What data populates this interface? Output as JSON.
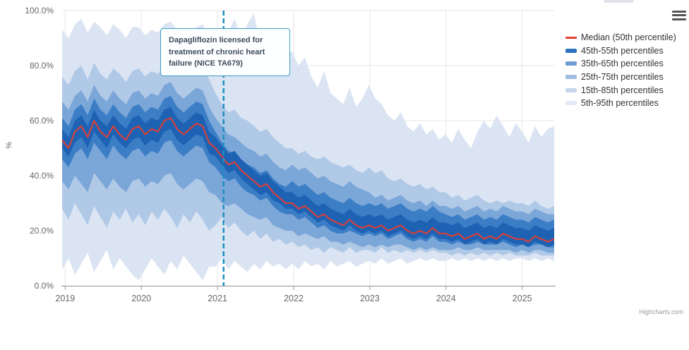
{
  "chart": {
    "y_axis_title": "%",
    "credits": "Highcharts.com",
    "annotation_text": "Dapagliflozin licensed for treatment of chronic heart failure (NICE TA679)",
    "menu_icon": "hamburger-icon",
    "colors": {
      "event_line": "#1d8fc0",
      "annotation_border": "#3aa0c7",
      "grid": "#e6e6e6",
      "axis_line": "#999999",
      "axis_label": "#666666",
      "legend_text": "#333333",
      "median": "#e23d32"
    }
  },
  "legend": {
    "items": [
      {
        "label": "Median (50th percentile)",
        "type": "line",
        "swatch_color": "#e23d32"
      },
      {
        "label": "45th-55th percentiles",
        "type": "band",
        "swatch_color": "#2e73bd"
      },
      {
        "label": "35th-65th percentiles",
        "type": "band",
        "swatch_color": "#6f9cd2"
      },
      {
        "label": "25th-75th percentiles",
        "type": "band",
        "swatch_color": "#9ebddf"
      },
      {
        "label": "15th-85th percentiles",
        "type": "band",
        "swatch_color": "#c6d6ec"
      },
      {
        "label": "5th-95th percentiles",
        "type": "band",
        "swatch_color": "#e3eaf5"
      }
    ]
  },
  "chart_data": {
    "type": "area",
    "subtype": "fan-chart-percentiles",
    "title": "",
    "xlabel": "",
    "ylabel": "%",
    "grid": true,
    "legend_position": "right",
    "xlim": [
      2018.96,
      2025.42
    ],
    "ylim": [
      0,
      100
    ],
    "n_points": 78,
    "x_unit": "monthly from Jan 2019 to Jun 2025",
    "x_ticks": [
      2019,
      2020,
      2021,
      2022,
      2023,
      2024,
      2025
    ],
    "x_tick_labels": [
      "2019",
      "2020",
      "2021",
      "2022",
      "2023",
      "2024",
      "2025"
    ],
    "y_ticks": [
      0,
      20,
      40,
      60,
      80,
      100
    ],
    "y_tick_labels": [
      "0.0%",
      "20.0%",
      "40.0%",
      "60.0%",
      "80.0%",
      "100.0%"
    ],
    "annotation_line_x": 2021.08,
    "series": [
      {
        "name": "Median (50th percentile)",
        "type": "line",
        "color": "#e23d32",
        "values": [
          53,
          50,
          56,
          58,
          54,
          60,
          56,
          54,
          58,
          55,
          53,
          57,
          58,
          55,
          57,
          56,
          60,
          61,
          57,
          55,
          57,
          59,
          58,
          52,
          50,
          47,
          44,
          45,
          42,
          40,
          38,
          36,
          37,
          34,
          32,
          30,
          30,
          28,
          29,
          27,
          25,
          26,
          24,
          23,
          22,
          24,
          22,
          21,
          22,
          21,
          22,
          20,
          21,
          22,
          20,
          19,
          20,
          19,
          21,
          19,
          19,
          18,
          19,
          17,
          18,
          19,
          17,
          18,
          17,
          19,
          18,
          17,
          17,
          16,
          18,
          17,
          16,
          17
        ]
      },
      {
        "name": "45th-55th percentiles",
        "type": "band",
        "color": "#1e62b4",
        "lower": [
          50,
          47,
          52,
          54,
          50,
          56,
          53,
          50,
          55,
          52,
          50,
          53,
          54,
          51,
          53,
          52,
          56,
          57,
          53,
          51,
          53,
          55,
          54,
          48,
          47,
          44,
          41,
          42,
          39,
          37,
          35,
          33,
          34,
          31,
          30,
          28,
          28,
          26,
          27,
          25,
          23,
          24,
          22,
          21,
          20,
          22,
          20,
          19,
          20,
          19,
          20,
          18,
          19,
          20,
          18,
          17,
          18,
          17,
          19,
          17,
          17,
          16,
          17,
          15,
          16,
          17,
          15,
          16,
          15,
          17,
          16,
          15,
          15,
          14,
          16,
          15,
          14,
          15
        ],
        "upper": [
          57,
          54,
          60,
          62,
          58,
          64,
          60,
          58,
          62,
          59,
          57,
          61,
          62,
          59,
          61,
          60,
          64,
          65,
          61,
          59,
          61,
          63,
          62,
          56,
          54,
          51,
          48,
          49,
          46,
          44,
          42,
          40,
          41,
          38,
          36,
          34,
          34,
          32,
          33,
          31,
          29,
          30,
          28,
          27,
          26,
          28,
          26,
          25,
          26,
          25,
          26,
          24,
          25,
          26,
          24,
          23,
          24,
          23,
          25,
          23,
          23,
          22,
          23,
          21,
          22,
          23,
          21,
          22,
          21,
          23,
          22,
          21,
          21,
          20,
          22,
          21,
          20,
          21
        ]
      },
      {
        "name": "35th-65th percentiles",
        "type": "band",
        "color": "#3c7ec6",
        "lower": [
          46,
          43,
          48,
          50,
          46,
          52,
          49,
          46,
          51,
          48,
          46,
          49,
          50,
          47,
          49,
          48,
          52,
          53,
          49,
          47,
          49,
          51,
          50,
          45,
          43,
          40,
          38,
          39,
          36,
          34,
          33,
          31,
          32,
          29,
          27,
          26,
          26,
          24,
          25,
          23,
          21,
          22,
          20,
          19,
          19,
          20,
          19,
          18,
          19,
          18,
          19,
          17,
          18,
          19,
          17,
          16,
          17,
          16,
          18,
          16,
          16,
          15,
          16,
          15,
          15,
          16,
          15,
          15,
          15,
          16,
          15,
          14,
          15,
          14,
          15,
          15,
          14,
          14
        ],
        "upper": [
          61,
          58,
          64,
          66,
          62,
          68,
          64,
          62,
          66,
          63,
          61,
          65,
          66,
          63,
          65,
          64,
          68,
          69,
          65,
          63,
          65,
          67,
          66,
          60,
          56,
          52,
          49,
          48,
          46,
          44,
          43,
          41,
          42,
          39,
          37,
          36,
          38,
          36,
          37,
          35,
          33,
          34,
          32,
          31,
          30,
          32,
          30,
          29,
          30,
          29,
          30,
          28,
          29,
          30,
          28,
          27,
          28,
          27,
          29,
          27,
          26,
          25,
          26,
          24,
          25,
          26,
          24,
          25,
          24,
          26,
          25,
          24,
          24,
          23,
          25,
          24,
          23,
          24
        ]
      },
      {
        "name": "25th-75th percentiles",
        "type": "band",
        "color": "#7ba6d8",
        "lower": [
          38,
          35,
          40,
          37,
          34,
          41,
          38,
          35,
          39,
          36,
          34,
          38,
          39,
          36,
          38,
          37,
          40,
          41,
          37,
          35,
          37,
          39,
          38,
          34,
          33,
          30,
          29,
          30,
          28,
          26,
          25,
          24,
          25,
          22,
          21,
          20,
          20,
          18,
          19,
          18,
          17,
          18,
          16,
          16,
          15,
          16,
          15,
          14,
          15,
          14,
          15,
          14,
          15,
          15,
          14,
          13,
          14,
          13,
          14,
          13,
          13,
          13,
          14,
          13,
          13,
          14,
          13,
          13,
          13,
          13,
          13,
          12,
          13,
          12,
          13,
          13,
          12,
          12
        ],
        "upper": [
          67,
          64,
          69,
          71,
          67,
          73,
          69,
          67,
          71,
          68,
          66,
          70,
          71,
          68,
          70,
          69,
          73,
          74,
          70,
          68,
          70,
          72,
          71,
          65,
          61,
          58,
          55,
          54,
          52,
          50,
          49,
          47,
          48,
          45,
          43,
          42,
          44,
          42,
          43,
          41,
          39,
          40,
          38,
          37,
          36,
          38,
          36,
          35,
          34,
          32,
          33,
          31,
          32,
          33,
          31,
          30,
          31,
          29,
          31,
          29,
          29,
          28,
          29,
          27,
          28,
          29,
          27,
          28,
          27,
          29,
          28,
          27,
          27,
          26,
          28,
          27,
          26,
          26
        ]
      },
      {
        "name": "15th-85th percentiles",
        "type": "band",
        "color": "#b0c9e7",
        "lower": [
          28,
          24,
          30,
          26,
          22,
          29,
          25,
          21,
          27,
          24,
          28,
          23,
          26,
          22,
          27,
          24,
          28,
          25,
          21,
          26,
          23,
          27,
          24,
          20,
          22,
          25,
          21,
          23,
          20,
          18,
          20,
          17,
          19,
          16,
          17,
          15,
          16,
          14,
          15,
          13,
          14,
          12,
          14,
          13,
          12,
          14,
          12,
          13,
          13,
          12,
          14,
          12,
          13,
          12,
          13,
          12,
          13,
          12,
          13,
          12,
          12,
          11,
          12,
          11,
          12,
          11,
          12,
          11,
          12,
          11,
          12,
          11,
          11,
          11,
          12,
          11,
          11,
          11
        ],
        "upper": [
          76,
          73,
          78,
          80,
          75,
          81,
          77,
          75,
          79,
          77,
          74,
          78,
          79,
          76,
          78,
          77,
          80,
          82,
          78,
          76,
          77,
          79,
          80,
          75,
          70,
          66,
          63,
          64,
          61,
          60,
          58,
          56,
          57,
          54,
          52,
          50,
          50,
          48,
          49,
          47,
          46,
          47,
          45,
          44,
          43,
          44,
          42,
          41,
          43,
          41,
          42,
          39,
          38,
          39,
          37,
          36,
          37,
          35,
          36,
          34,
          34,
          32,
          33,
          31,
          32,
          33,
          31,
          30,
          31,
          30,
          31,
          30,
          30,
          29,
          31,
          29,
          28,
          29
        ]
      },
      {
        "name": "5th-95th percentiles",
        "type": "band",
        "color": "#dbe4f2",
        "lower": [
          6,
          10,
          4,
          8,
          12,
          5,
          9,
          13,
          6,
          10,
          7,
          4,
          2,
          6,
          10,
          7,
          4,
          9,
          6,
          11,
          8,
          5,
          2,
          7,
          7,
          10,
          6,
          9,
          7,
          5,
          8,
          6,
          9,
          7,
          8,
          6,
          8,
          6,
          9,
          7,
          8,
          6,
          9,
          7,
          8,
          9,
          7,
          8,
          9,
          8,
          10,
          8,
          9,
          10,
          8,
          9,
          10,
          9,
          10,
          9,
          9,
          10,
          9,
          10,
          9,
          10,
          9,
          10,
          9,
          10,
          9,
          10,
          10,
          9,
          10,
          9,
          10,
          9
        ],
        "upper": [
          93,
          90,
          95,
          97,
          92,
          96,
          94,
          91,
          95,
          93,
          90,
          94,
          94,
          91,
          93,
          92,
          95,
          96,
          93,
          90,
          92,
          94,
          95,
          90,
          90,
          88,
          92,
          97,
          90,
          95,
          99,
          88,
          93,
          86,
          82,
          85,
          85,
          80,
          83,
          76,
          72,
          78,
          70,
          68,
          66,
          72,
          65,
          68,
          73,
          68,
          66,
          62,
          60,
          63,
          58,
          56,
          59,
          55,
          57,
          53,
          55,
          52,
          57,
          53,
          50,
          56,
          60,
          57,
          62,
          58,
          54,
          59,
          56,
          52,
          58,
          54,
          57,
          58
        ]
      }
    ]
  }
}
